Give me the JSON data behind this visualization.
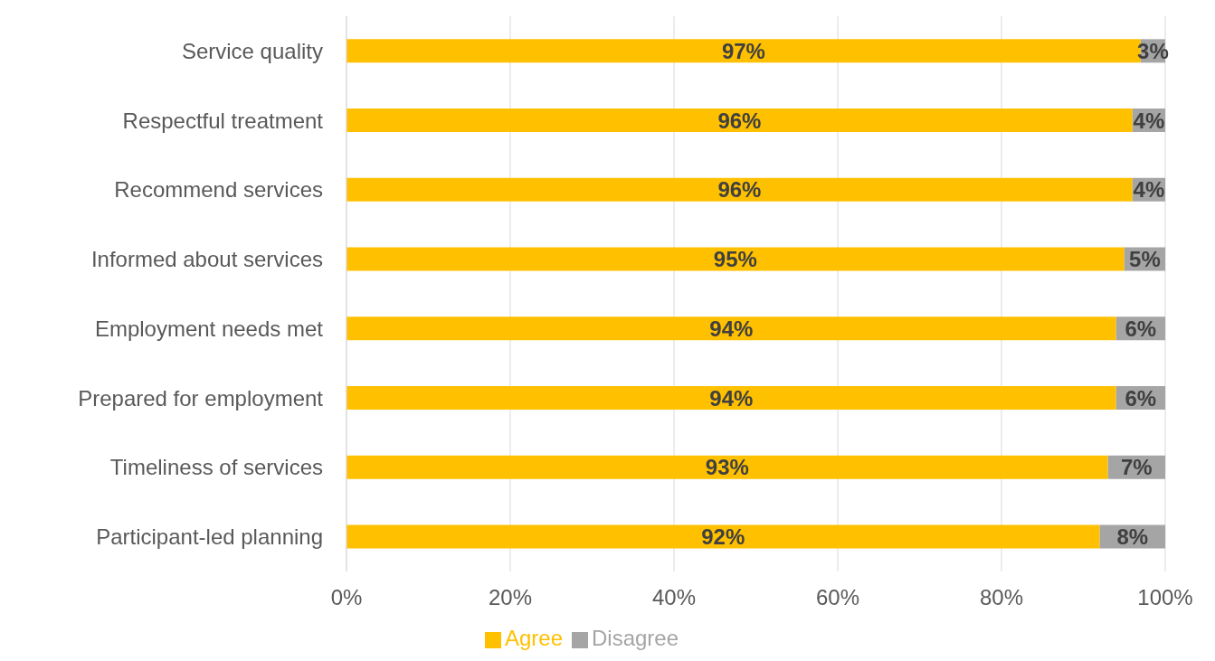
{
  "chart_data": {
    "type": "bar",
    "orientation": "horizontal",
    "stacked": true,
    "categories": [
      "Service quality",
      "Respectful treatment",
      "Recommend services",
      "Informed about services",
      "Employment needs met",
      "Prepared for employment",
      "Timeliness of services",
      "Participant-led planning"
    ],
    "series": [
      {
        "name": "Agree",
        "color": "#ffc000",
        "values": [
          97,
          96,
          96,
          95,
          94,
          94,
          93,
          92
        ],
        "value_labels": [
          "97%",
          "96%",
          "96%",
          "95%",
          "94%",
          "94%",
          "93%",
          "92%"
        ]
      },
      {
        "name": "Disagree",
        "color": "#a5a5a5",
        "values": [
          3,
          4,
          4,
          5,
          6,
          6,
          7,
          8
        ],
        "value_labels": [
          "3%",
          "4%",
          "4%",
          "5%",
          "6%",
          "6%",
          "7%",
          "8%"
        ]
      }
    ],
    "xlim": [
      0,
      100
    ],
    "xticks": [
      {
        "value": 0,
        "label": "0%"
      },
      {
        "value": 20,
        "label": "20%"
      },
      {
        "value": 40,
        "label": "40%"
      },
      {
        "value": 60,
        "label": "60%"
      },
      {
        "value": 80,
        "label": "80%"
      },
      {
        "value": 100,
        "label": "100%"
      }
    ],
    "grid": "x",
    "legend": "bottom"
  }
}
